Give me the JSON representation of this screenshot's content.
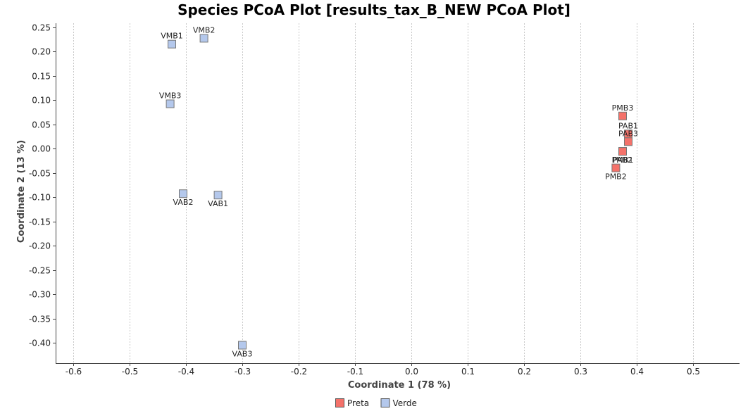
{
  "chart_data": {
    "type": "scatter",
    "title": "Species PCoA Plot [results_tax_B_NEW PCoA Plot]",
    "xlabel": "Coordinate 1 (78 %)",
    "ylabel": "Coordinate 2 (13 %)",
    "xlim": [
      -0.63,
      0.58
    ],
    "ylim": [
      -0.44,
      0.26
    ],
    "xticks": [
      "-0.6",
      "-0.5",
      "-0.4",
      "-0.3",
      "-0.2",
      "-0.1",
      "0.0",
      "0.1",
      "0.2",
      "0.3",
      "0.4",
      "0.5"
    ],
    "xtick_values": [
      -0.6,
      -0.5,
      -0.4,
      -0.3,
      -0.2,
      -0.1,
      0.0,
      0.1,
      0.2,
      0.3,
      0.4,
      0.5
    ],
    "yticks": [
      "0.25",
      "0.20",
      "0.15",
      "0.10",
      "0.05",
      "0.00",
      "-0.05",
      "-0.10",
      "-0.15",
      "-0.20",
      "-0.25",
      "-0.30",
      "-0.35",
      "-0.40"
    ],
    "ytick_values": [
      0.25,
      0.2,
      0.15,
      0.1,
      0.05,
      0.0,
      -0.05,
      -0.1,
      -0.15,
      -0.2,
      -0.25,
      -0.3,
      -0.35,
      -0.4
    ],
    "grid": "vertical dashed",
    "legend_position": "bottom",
    "series": [
      {
        "name": "Preta",
        "color": "#f4726a",
        "points": [
          {
            "label": "PMB3",
            "x": 0.375,
            "y": 0.067,
            "label_pos": "above"
          },
          {
            "label": "PAB1",
            "x": 0.385,
            "y": 0.03,
            "label_pos": "above"
          },
          {
            "label": "PAB3",
            "x": 0.385,
            "y": 0.014,
            "label_pos": "above"
          },
          {
            "label": "PMB1",
            "x": 0.375,
            "y": -0.006,
            "label_pos": "below"
          },
          {
            "label": "PAB2",
            "x": 0.375,
            "y": -0.006,
            "label_pos": "below"
          },
          {
            "label": "PMB2",
            "x": 0.363,
            "y": -0.04,
            "label_pos": "below"
          }
        ]
      },
      {
        "name": "Verde",
        "color": "#b4c8ec",
        "points": [
          {
            "label": "VMB1",
            "x": -0.425,
            "y": 0.215,
            "label_pos": "above"
          },
          {
            "label": "VMB2",
            "x": -0.368,
            "y": 0.227,
            "label_pos": "above"
          },
          {
            "label": "VMB3",
            "x": -0.428,
            "y": 0.092,
            "label_pos": "above"
          },
          {
            "label": "VAB2",
            "x": -0.405,
            "y": -0.093,
            "label_pos": "below"
          },
          {
            "label": "VAB1",
            "x": -0.343,
            "y": -0.096,
            "label_pos": "below"
          },
          {
            "label": "VAB3",
            "x": -0.3,
            "y": -0.405,
            "label_pos": "below"
          }
        ]
      }
    ]
  }
}
